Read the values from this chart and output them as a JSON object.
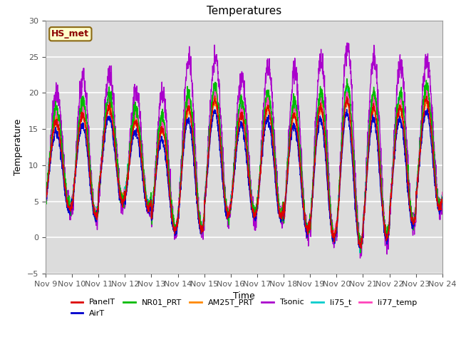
{
  "title": "Temperatures",
  "xlabel": "Time",
  "ylabel": "Temperature",
  "ylim": [
    -5,
    30
  ],
  "annotation_text": "HS_met",
  "annotation_bg": "#FFFFCC",
  "annotation_border": "#8B6914",
  "series": [
    "PanelT",
    "AirT",
    "NR01_PRT",
    "AM25T_PRT",
    "Tsonic",
    "li75_t",
    "li77_temp"
  ],
  "colors": {
    "PanelT": "#DD0000",
    "AirT": "#0000CC",
    "NR01_PRT": "#00BB00",
    "AM25T_PRT": "#FF8800",
    "Tsonic": "#AA00CC",
    "li75_t": "#00CCCC",
    "li77_temp": "#FF44BB"
  },
  "n_days": 15,
  "points_per_day": 144,
  "start_day": 9,
  "axes_bg": "#DCDCDC",
  "grid_color": "#FFFFFF",
  "fig_bg": "#FFFFFF",
  "tick_color": "#555555",
  "tick_labelsize": 8,
  "title_fontsize": 11,
  "axis_labelsize": 9,
  "legend_fontsize": 8,
  "linewidth": 1.0
}
